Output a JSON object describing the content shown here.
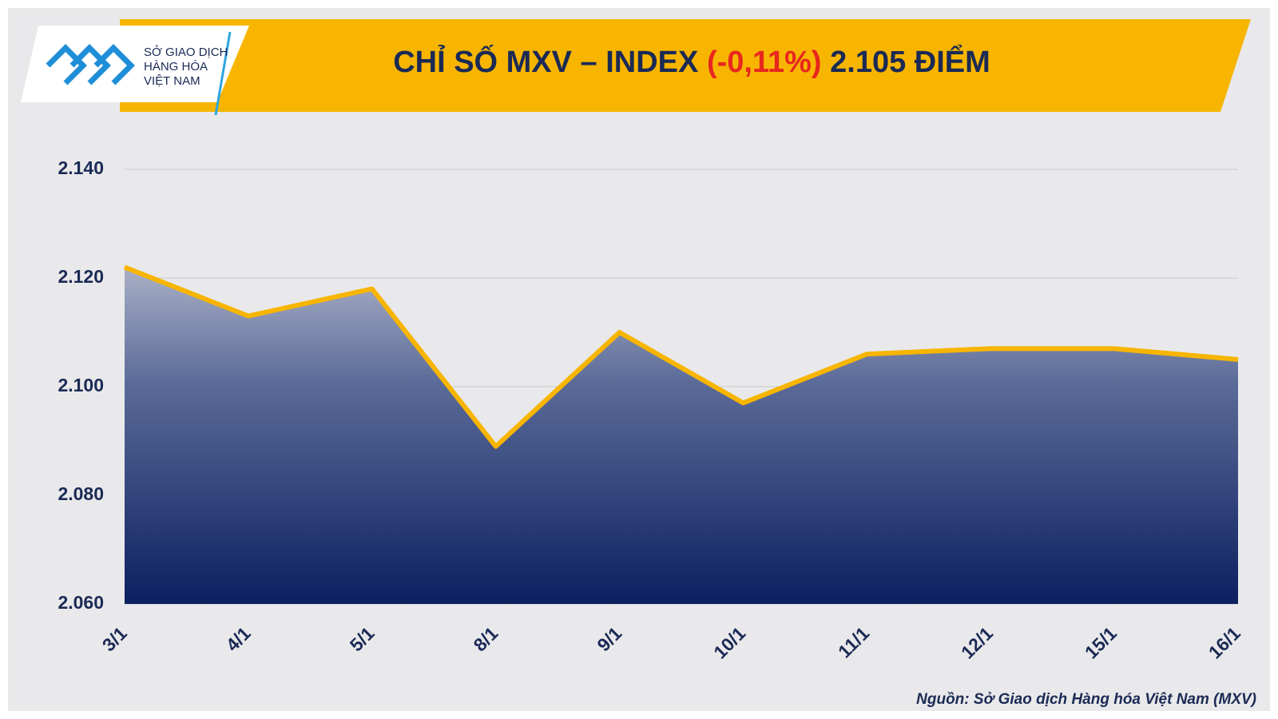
{
  "chart_data": {
    "type": "area",
    "title": {
      "text": "CHỈ SỐ MXV – INDEX",
      "change": "(-0,11%)",
      "level": "2.105 ĐIỂM"
    },
    "logo": [
      "SỞ GIAO DỊCH",
      "HÀNG HÓA",
      "VIỆT NAM"
    ],
    "source": "Nguồn: Sở Giao dịch Hàng hóa Việt Nam (MXV)",
    "categories": [
      "3/1",
      "4/1",
      "5/1",
      "8/1",
      "9/1",
      "10/1",
      "11/1",
      "12/1",
      "15/1",
      "16/1"
    ],
    "values": [
      2122,
      2113,
      2118,
      2089,
      2110,
      2097,
      2106,
      2107,
      2107,
      2105
    ],
    "color": "#f7b500",
    "ylim": [
      2060,
      2140
    ],
    "yticks": [
      {
        "value": 2060,
        "label": "2.060"
      },
      {
        "value": 2080,
        "label": "2.080"
      },
      {
        "value": 2100,
        "label": "2.100"
      },
      {
        "value": 2120,
        "label": "2.120"
      },
      {
        "value": 2140,
        "label": "2.140"
      }
    ],
    "grid": true
  }
}
